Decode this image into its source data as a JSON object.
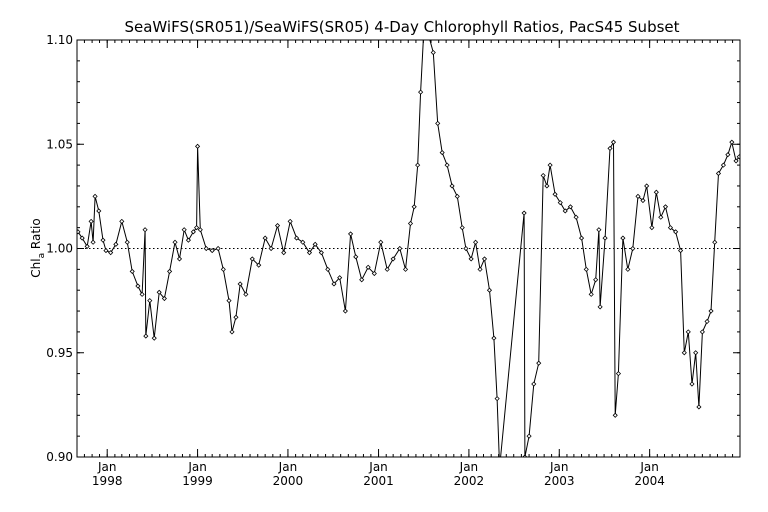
{
  "chart_data": {
    "type": "line",
    "title": "SeaWiFS(SR051)/SeaWiFS(SR05) 4-Day Chlorophyll Ratios, PacS45 Subset",
    "xlabel": "",
    "ylabel_main": "Chl",
    "ylabel_sub": "a",
    "ylabel_tail": " Ratio",
    "xlim": [
      "1997-09-01",
      "2004-12-31"
    ],
    "ylim": [
      0.9,
      1.1
    ],
    "y_ticks": [
      {
        "value": 0.9,
        "label": "0.90"
      },
      {
        "value": 0.95,
        "label": "0.95"
      },
      {
        "value": 1.0,
        "label": "1.00"
      },
      {
        "value": 1.05,
        "label": "1.05"
      },
      {
        "value": 1.1,
        "label": "1.10"
      }
    ],
    "x_ticks": [
      {
        "date": "1998-01-01",
        "month": "Jan",
        "year": "1998"
      },
      {
        "date": "1999-01-01",
        "month": "Jan",
        "year": "1999"
      },
      {
        "date": "2000-01-01",
        "month": "Jan",
        "year": "2000"
      },
      {
        "date": "2001-01-01",
        "month": "Jan",
        "year": "2001"
      },
      {
        "date": "2002-01-01",
        "month": "Jan",
        "year": "2002"
      },
      {
        "date": "2003-01-01",
        "month": "Jan",
        "year": "2003"
      },
      {
        "date": "2004-01-01",
        "month": "Jan",
        "year": "2004"
      }
    ],
    "reference_line": 1.0,
    "grid": false,
    "series": [
      {
        "points": [
          [
            "1997-09-05",
            1.008
          ],
          [
            "1997-09-22",
            1.005
          ],
          [
            "1997-10-12",
            1.001
          ],
          [
            "1997-10-28",
            1.013
          ],
          [
            "1997-11-05",
            1.003
          ],
          [
            "1997-11-13",
            1.025
          ],
          [
            "1997-11-28",
            1.018
          ],
          [
            "1997-12-15",
            1.004
          ],
          [
            "1997-12-27",
            0.999
          ],
          [
            "1998-01-15",
            0.998
          ],
          [
            "1998-02-05",
            1.002
          ],
          [
            "1998-03-01",
            1.013
          ],
          [
            "1998-03-23",
            1.003
          ],
          [
            "1998-04-12",
            0.989
          ],
          [
            "1998-05-05",
            0.982
          ],
          [
            "1998-05-22",
            0.978
          ],
          [
            "1998-06-03",
            1.009
          ],
          [
            "1998-06-06",
            0.958
          ],
          [
            "1998-06-22",
            0.975
          ],
          [
            "1998-07-10",
            0.957
          ],
          [
            "1998-07-30",
            0.979
          ],
          [
            "1998-08-20",
            0.976
          ],
          [
            "1998-09-10",
            0.989
          ],
          [
            "1998-10-02",
            1.003
          ],
          [
            "1998-10-20",
            0.995
          ],
          [
            "1998-11-08",
            1.009
          ],
          [
            "1998-11-25",
            1.004
          ],
          [
            "1998-12-15",
            1.008
          ],
          [
            "1998-12-28",
            1.01
          ],
          [
            "1999-01-01",
            1.049
          ],
          [
            "1999-01-12",
            1.009
          ],
          [
            "1999-02-05",
            1.0
          ],
          [
            "1999-03-01",
            0.999
          ],
          [
            "1999-03-25",
            1.0
          ],
          [
            "1999-04-15",
            0.99
          ],
          [
            "1999-05-08",
            0.975
          ],
          [
            "1999-05-20",
            0.96
          ],
          [
            "1999-06-05",
            0.967
          ],
          [
            "1999-06-22",
            0.983
          ],
          [
            "1999-07-15",
            0.978
          ],
          [
            "1999-08-10",
            0.995
          ],
          [
            "1999-09-05",
            0.992
          ],
          [
            "1999-10-01",
            1.005
          ],
          [
            "1999-10-25",
            1.0
          ],
          [
            "1999-11-20",
            1.011
          ],
          [
            "1999-12-15",
            0.998
          ],
          [
            "2000-01-10",
            1.013
          ],
          [
            "2000-02-05",
            1.005
          ],
          [
            "2000-03-01",
            1.003
          ],
          [
            "2000-03-28",
            0.998
          ],
          [
            "2000-04-20",
            1.002
          ],
          [
            "2000-05-15",
            0.998
          ],
          [
            "2000-06-10",
            0.99
          ],
          [
            "2000-07-05",
            0.983
          ],
          [
            "2000-07-28",
            0.986
          ],
          [
            "2000-08-20",
            0.97
          ],
          [
            "2000-09-10",
            1.007
          ],
          [
            "2000-10-01",
            0.996
          ],
          [
            "2000-10-25",
            0.985
          ],
          [
            "2000-11-20",
            0.991
          ],
          [
            "2000-12-15",
            0.988
          ],
          [
            "2001-01-10",
            1.003
          ],
          [
            "2001-02-05",
            0.99
          ],
          [
            "2001-03-01",
            0.995
          ],
          [
            "2001-03-28",
            1.0
          ],
          [
            "2001-04-20",
            0.99
          ],
          [
            "2001-05-10",
            1.012
          ],
          [
            "2001-05-25",
            1.02
          ],
          [
            "2001-06-08",
            1.04
          ],
          [
            "2001-06-20",
            1.075
          ],
          [
            "2001-07-05",
            1.109
          ],
          [
            "2001-07-25",
            1.101
          ],
          [
            "2001-08-10",
            1.094
          ],
          [
            "2001-08-28",
            1.06
          ],
          [
            "2001-09-15",
            1.046
          ],
          [
            "2001-10-05",
            1.04
          ],
          [
            "2001-10-25",
            1.03
          ],
          [
            "2001-11-15",
            1.025
          ],
          [
            "2001-12-05",
            1.01
          ],
          [
            "2001-12-20",
            1.0
          ],
          [
            "2002-01-10",
            0.995
          ],
          [
            "2002-01-28",
            1.003
          ],
          [
            "2002-02-15",
            0.99
          ],
          [
            "2002-03-05",
            0.995
          ],
          [
            "2002-03-25",
            0.98
          ],
          [
            "2002-04-12",
            0.957
          ],
          [
            "2002-04-25",
            0.928
          ],
          [
            "2002-05-05",
            0.895
          ],
          [
            "2002-08-12",
            1.017
          ],
          [
            "2002-08-15",
            0.9
          ],
          [
            "2002-09-01",
            0.91
          ],
          [
            "2002-09-20",
            0.935
          ],
          [
            "2002-10-10",
            0.945
          ],
          [
            "2002-10-28",
            1.035
          ],
          [
            "2002-11-12",
            1.03
          ],
          [
            "2002-11-25",
            1.04
          ],
          [
            "2002-12-15",
            1.026
          ],
          [
            "2003-01-05",
            1.022
          ],
          [
            "2003-01-25",
            1.018
          ],
          [
            "2003-02-15",
            1.02
          ],
          [
            "2003-03-10",
            1.015
          ],
          [
            "2003-04-01",
            1.005
          ],
          [
            "2003-04-20",
            0.99
          ],
          [
            "2003-05-10",
            0.978
          ],
          [
            "2003-05-28",
            0.985
          ],
          [
            "2003-06-10",
            1.009
          ],
          [
            "2003-06-15",
            0.972
          ],
          [
            "2003-07-05",
            1.005
          ],
          [
            "2003-07-25",
            1.048
          ],
          [
            "2003-08-08",
            1.051
          ],
          [
            "2003-08-15",
            0.92
          ],
          [
            "2003-08-28",
            0.94
          ],
          [
            "2003-09-15",
            1.005
          ],
          [
            "2003-10-05",
            0.99
          ],
          [
            "2003-10-25",
            1.0
          ],
          [
            "2003-11-15",
            1.025
          ],
          [
            "2003-12-05",
            1.023
          ],
          [
            "2003-12-20",
            1.03
          ],
          [
            "2004-01-10",
            1.01
          ],
          [
            "2004-01-28",
            1.027
          ],
          [
            "2004-02-15",
            1.015
          ],
          [
            "2004-03-05",
            1.02
          ],
          [
            "2004-03-25",
            1.01
          ],
          [
            "2004-04-15",
            1.008
          ],
          [
            "2004-05-05",
            0.999
          ],
          [
            "2004-05-20",
            0.95
          ],
          [
            "2004-06-05",
            0.96
          ],
          [
            "2004-06-20",
            0.935
          ],
          [
            "2004-07-05",
            0.95
          ],
          [
            "2004-07-18",
            0.924
          ],
          [
            "2004-08-01",
            0.96
          ],
          [
            "2004-08-20",
            0.965
          ],
          [
            "2004-09-05",
            0.97
          ],
          [
            "2004-09-20",
            1.003
          ],
          [
            "2004-10-05",
            1.036
          ],
          [
            "2004-10-25",
            1.04
          ],
          [
            "2004-11-12",
            1.045
          ],
          [
            "2004-11-28",
            1.051
          ],
          [
            "2004-12-15",
            1.042
          ],
          [
            "2004-12-28",
            1.044
          ]
        ]
      }
    ]
  }
}
